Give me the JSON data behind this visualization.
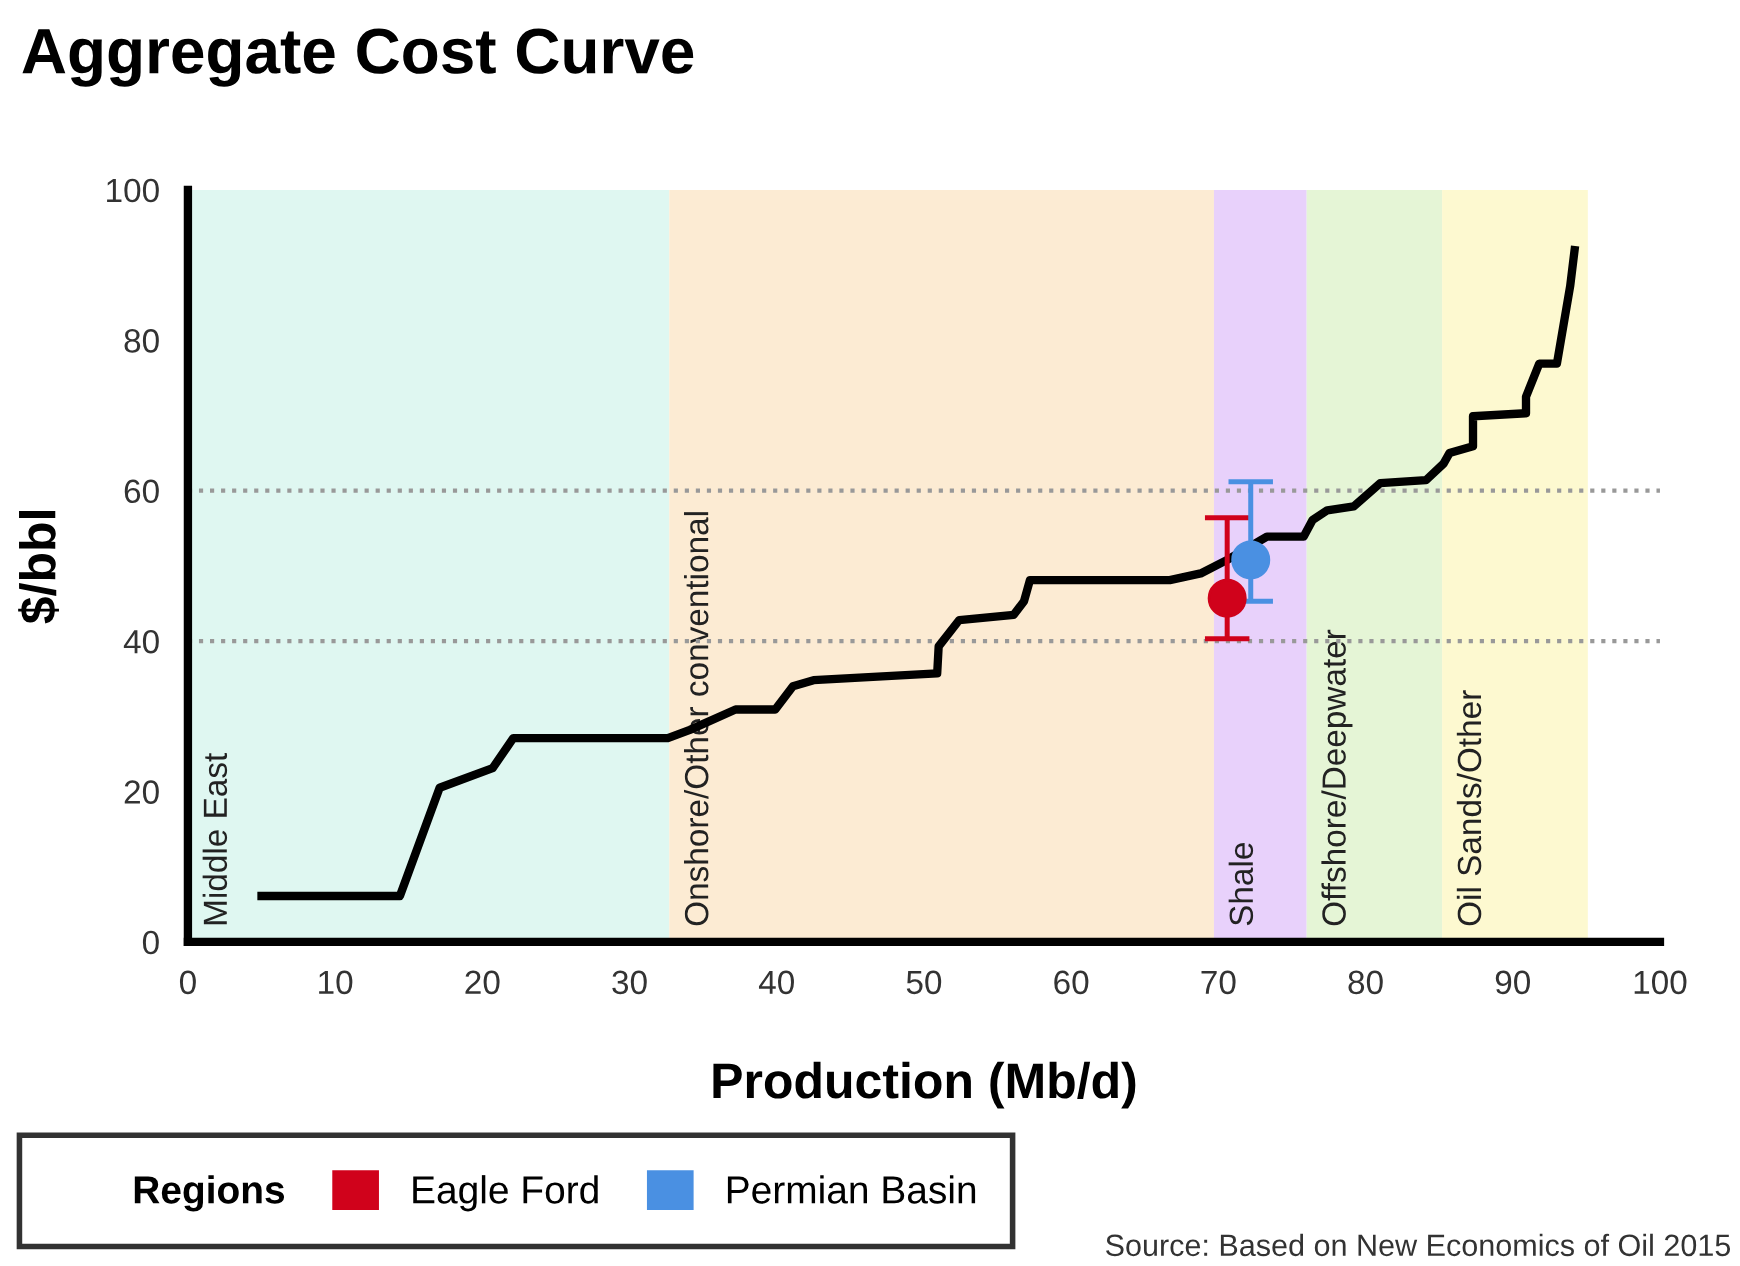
{
  "chart_data": {
    "type": "line",
    "title": "Aggregate Cost Curve",
    "xlabel": "Production (Mb/d)",
    "ylabel": "$/bbl",
    "xlim": [
      0,
      100
    ],
    "xticks": [
      0,
      10,
      20,
      30,
      40,
      50,
      60,
      70,
      80,
      90,
      100
    ],
    "ylim": [
      0,
      100
    ],
    "yticks": [
      0,
      20,
      40,
      60,
      80,
      100
    ],
    "grid": false,
    "series": [
      {
        "color": "#000000",
        "line_style": "solid",
        "marker": "none",
        "x": [
          5.0,
          14.4,
          17.1,
          20.7,
          22.1,
          32.6,
          34.1,
          37.2,
          39.9,
          41.1,
          42.5,
          50.9,
          51.0,
          52.4,
          56.1,
          56.8,
          57.2,
          66.7,
          68.8,
          70.6,
          73.3,
          75.8,
          76.4,
          77.4,
          79.2,
          81.0,
          84.1,
          85.3,
          85.7,
          87.3,
          87.3,
          90.9,
          90.9,
          91.8,
          93.0,
          93.9,
          94.2
        ],
        "values": [
          6.1,
          6.1,
          20.5,
          23.1,
          27.1,
          27.1,
          28.2,
          30.9,
          30.9,
          34.0,
          34.8,
          35.7,
          39.3,
          42.8,
          43.5,
          45.3,
          48.1,
          48.1,
          49.0,
          50.8,
          53.9,
          53.9,
          56.1,
          57.4,
          57.9,
          61.0,
          61.4,
          63.6,
          65.0,
          65.9,
          69.9,
          70.3,
          72.5,
          76.9,
          76.9,
          87.2,
          92.0
        ]
      },
      {
        "type": "scatter",
        "name": "Eagle Ford",
        "color": "#d0021b",
        "marker": "circle",
        "x": [
          70.6
        ],
        "values": [
          45.7
        ],
        "errors": [
          [
            40.3,
            56.4
          ]
        ]
      },
      {
        "type": "scatter",
        "name": "Permian Basin",
        "color": "#4a90e2",
        "marker": "circle",
        "x": [
          72.2
        ],
        "values": [
          50.8
        ],
        "errors": [
          [
            45.3,
            61.2
          ]
        ]
      }
    ],
    "bands": [
      {
        "axis": "x",
        "from": 0,
        "to": 32.7,
        "label": "Middle East",
        "color": "#dff7f1"
      },
      {
        "axis": "x",
        "from": 32.7,
        "to": 69.7,
        "label": "Onshore/Other conventional",
        "color": "#fcebd3"
      },
      {
        "axis": "x",
        "from": 69.7,
        "to": 76.0,
        "label": "Shale",
        "color": "#e8d1fb"
      },
      {
        "axis": "x",
        "from": 76.0,
        "to": 85.2,
        "label": "Offshore/Deepwater",
        "color": "#e5f5d6"
      },
      {
        "axis": "x",
        "from": 85.2,
        "to": 95.1,
        "label": "Oil Sands/Other",
        "color": "#fdf9d0"
      }
    ],
    "ref_lines": [
      {
        "axis": "y",
        "value": 40,
        "color": "#999999",
        "line_style": "dotted"
      },
      {
        "axis": "y",
        "value": 60,
        "color": "#999999",
        "line_style": "dotted"
      }
    ],
    "legend": "bottom left",
    "legend_title": "Regions",
    "annotations": [
      "Source: Based on New Economics of Oil 2015"
    ]
  }
}
